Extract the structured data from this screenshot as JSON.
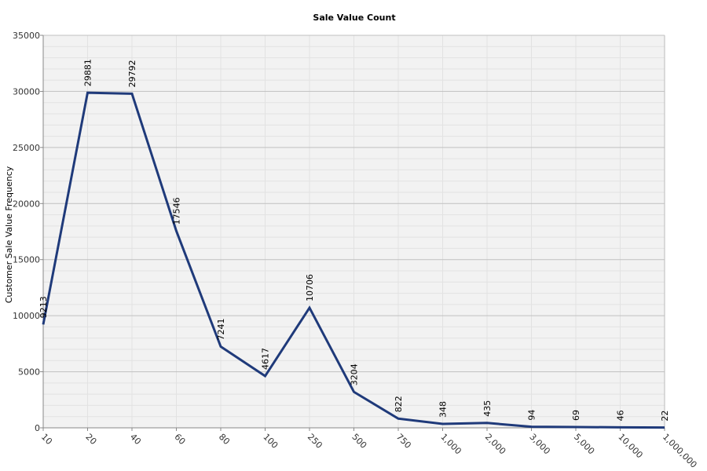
{
  "chart_data": {
    "type": "line",
    "title": "Sale Value Count",
    "xlabel": "",
    "ylabel": "Customer Sale Value Frequency",
    "categories": [
      "10",
      "20",
      "40",
      "60",
      "80",
      "100",
      "250",
      "500",
      "750",
      "1,000",
      "2,000",
      "3,000",
      "5,000",
      "10,000",
      "1,000,000"
    ],
    "series": [
      {
        "values": [
          9213,
          29881,
          29792,
          17546,
          7241,
          4617,
          10706,
          3204,
          822,
          348,
          435,
          94,
          69,
          46,
          22
        ]
      }
    ],
    "data_labels": [
      "9213",
      "29881",
      "29792",
      "17546",
      "7241",
      "4617",
      "10706",
      "3204",
      "822",
      "348",
      "435",
      "94",
      "69",
      "46",
      "22"
    ],
    "yticks": [
      "0",
      "5000",
      "10000",
      "15000",
      "20000",
      "25000",
      "30000",
      "35000"
    ],
    "ylim": [
      0,
      35000
    ],
    "grid": true,
    "colors": {
      "line": "#1f3a7a",
      "plot_background": "#f2f2f2",
      "major_grid": "#c0c0c0",
      "minor_grid": "#e2e2e2"
    }
  }
}
